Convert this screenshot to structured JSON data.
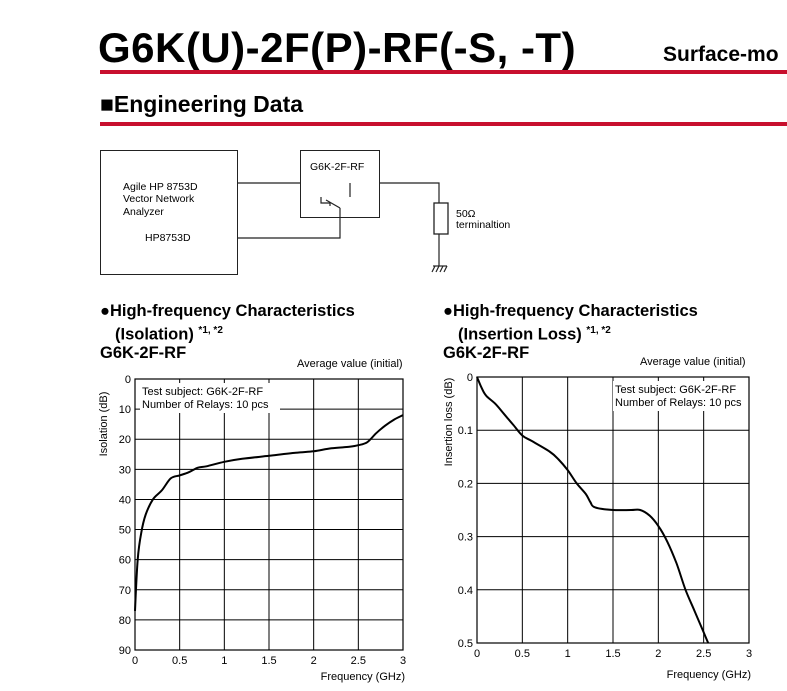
{
  "header": {
    "title": "G6K(U)-2F(P)-RF(-S, -T)",
    "side_title": "Surface-mo"
  },
  "section": {
    "title": "■Engineering Data"
  },
  "diagram": {
    "analyzer_lines": [
      "Agile HP 8753D",
      "Vector Network",
      "Analyzer"
    ],
    "analyzer_model": "HP8753D",
    "relay_label": "G6K-2F-RF",
    "termination_lines": [
      "50Ω",
      "terminaltion"
    ]
  },
  "charts": [
    {
      "bullet_title_line1": "●High-frequency Characteristics",
      "bullet_title_line2": "(Isolation)",
      "notes": "*1, *2",
      "model": "G6K-2F-RF",
      "avg_label": "Average value (initial)",
      "subject_line1": "Test subject: G6K-2F-RF",
      "subject_line2": "Number of Relays: 10 pcs"
    },
    {
      "bullet_title_line1": "●High-frequency Characteristics",
      "bullet_title_line2": "(Insertion Loss)",
      "notes": "*1, *2",
      "model": "G6K-2F-RF",
      "avg_label": "Average value (initial)",
      "subject_line1": "Test subject: G6K-2F-RF",
      "subject_line2": "Number of Relays: 10 pcs"
    }
  ],
  "chart_data": [
    {
      "type": "line",
      "xlabel": "Frequency (GHz)",
      "ylabel": "Isolation (dB)",
      "xlim": [
        0,
        3
      ],
      "ylim": [
        0,
        90
      ],
      "y_inverted": true,
      "grid": true,
      "x_ticks": [
        "0",
        "0.5",
        "1",
        "1.5",
        "2",
        "2.5",
        "3"
      ],
      "y_ticks": [
        "0",
        "10",
        "20",
        "30",
        "40",
        "50",
        "60",
        "70",
        "80",
        "90"
      ],
      "series": [
        {
          "x": [
            0.0,
            0.03,
            0.07,
            0.12,
            0.2,
            0.3,
            0.4,
            0.5,
            0.6,
            0.7,
            0.8,
            1.0,
            1.2,
            1.5,
            1.8,
            2.0,
            2.2,
            2.4,
            2.5,
            2.6,
            2.7,
            2.8,
            2.9,
            3.0
          ],
          "y": [
            77,
            60,
            51,
            45,
            40,
            37,
            33,
            32,
            31,
            29.5,
            29,
            27.5,
            26.5,
            25.5,
            24.5,
            24,
            23,
            22.5,
            22,
            21,
            18,
            15.5,
            13.5,
            12
          ]
        }
      ]
    },
    {
      "type": "line",
      "xlabel": "Frequency (GHz)",
      "ylabel": "Insertion loss (dB)",
      "xlim": [
        0,
        3
      ],
      "ylim": [
        0,
        0.5
      ],
      "y_inverted": true,
      "grid": true,
      "x_ticks": [
        "0",
        "0.5",
        "1",
        "1.5",
        "2",
        "2.5",
        "3"
      ],
      "y_ticks": [
        "0",
        "0.1",
        "0.2",
        "0.3",
        "0.4",
        "0.5"
      ],
      "series": [
        {
          "x": [
            0.0,
            0.05,
            0.1,
            0.2,
            0.3,
            0.4,
            0.5,
            0.6,
            0.8,
            0.9,
            1.0,
            1.1,
            1.2,
            1.25,
            1.3,
            1.5,
            1.7,
            1.8,
            1.9,
            2.0,
            2.1,
            2.2,
            2.3,
            2.4,
            2.5,
            2.55
          ],
          "y": [
            0.0,
            0.02,
            0.035,
            0.05,
            0.07,
            0.09,
            0.11,
            0.12,
            0.14,
            0.155,
            0.175,
            0.2,
            0.22,
            0.235,
            0.245,
            0.25,
            0.25,
            0.25,
            0.26,
            0.28,
            0.31,
            0.35,
            0.4,
            0.44,
            0.48,
            0.5
          ]
        }
      ]
    }
  ]
}
